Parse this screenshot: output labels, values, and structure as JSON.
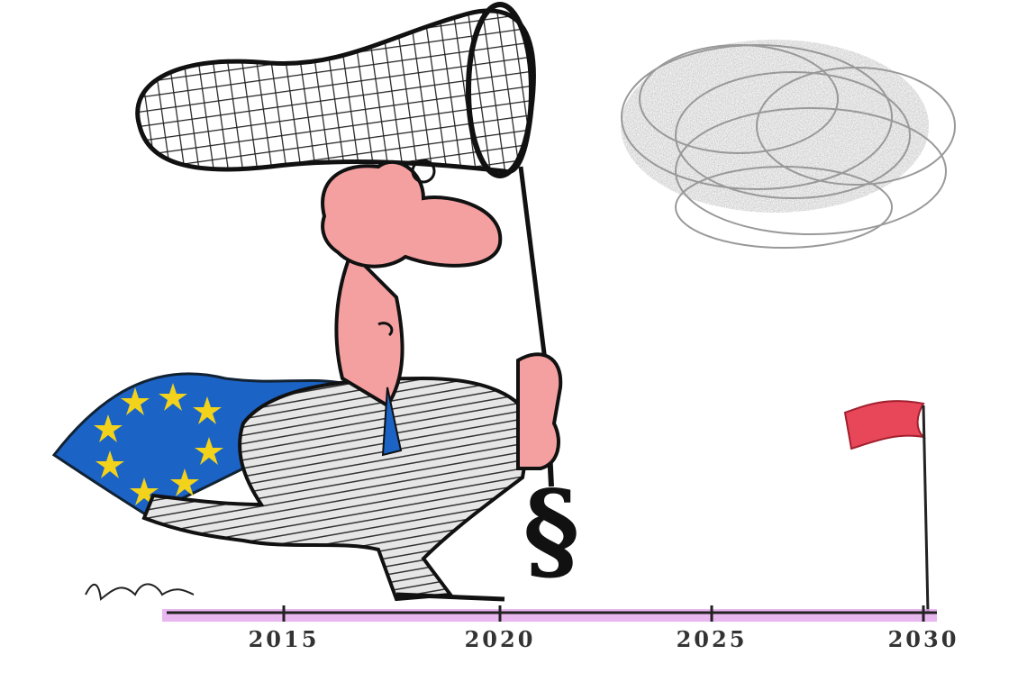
{
  "timeline": {
    "labels": [
      "2015",
      "2020",
      "2025",
      "2030"
    ]
  },
  "handle_symbol": "§"
}
